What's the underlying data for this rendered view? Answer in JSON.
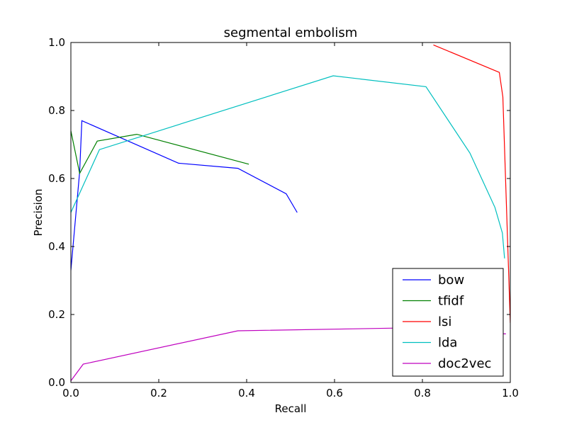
{
  "chart_data": {
    "type": "line",
    "title": "segmental embolism",
    "xlabel": "Recall",
    "ylabel": "Precision",
    "xlim": [
      0.0,
      1.0
    ],
    "ylim": [
      0.0,
      1.0
    ],
    "xticks": [
      "0.0",
      "0.2",
      "0.4",
      "0.6",
      "0.8",
      "1.0"
    ],
    "yticks": [
      "0.0",
      "0.2",
      "0.4",
      "0.6",
      "0.8",
      "1.0"
    ],
    "grid": false,
    "legend_position": "lower-right",
    "series": [
      {
        "name": "bow",
        "color": "#0000ff",
        "x": [
          0.0,
          0.02,
          0.025,
          0.245,
          0.38,
          0.49,
          0.515
        ],
        "y": [
          0.33,
          0.62,
          0.77,
          0.645,
          0.63,
          0.555,
          0.5
        ]
      },
      {
        "name": "tfidf",
        "color": "#008000",
        "x": [
          0.0,
          0.02,
          0.06,
          0.15,
          0.405
        ],
        "y": [
          0.74,
          0.615,
          0.71,
          0.73,
          0.642
        ]
      },
      {
        "name": "lsi",
        "color": "#ff0000",
        "x": [
          0.825,
          0.975,
          0.983,
          1.0
        ],
        "y": [
          0.993,
          0.912,
          0.84,
          0.175
        ]
      },
      {
        "name": "lda",
        "color": "#00bfbf",
        "x": [
          0.0,
          0.065,
          0.597,
          0.808,
          0.908,
          0.965,
          0.982,
          0.987
        ],
        "y": [
          0.5,
          0.685,
          0.902,
          0.87,
          0.675,
          0.515,
          0.44,
          0.365
        ]
      },
      {
        "name": "doc2vec",
        "color": "#bf00bf",
        "x": [
          0.0,
          0.028,
          0.38,
          0.74,
          0.99
        ],
        "y": [
          0.005,
          0.054,
          0.152,
          0.16,
          0.143
        ]
      }
    ]
  }
}
